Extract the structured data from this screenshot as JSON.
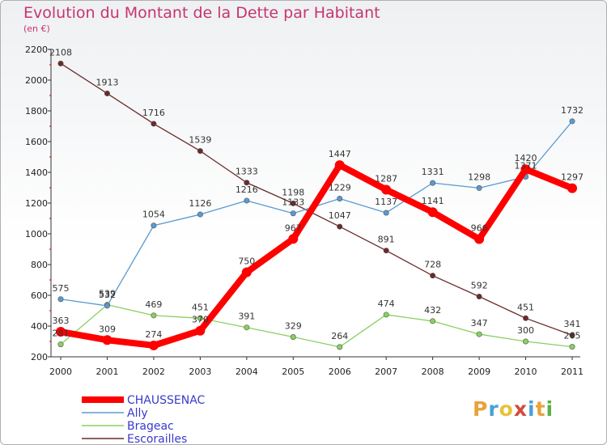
{
  "title": "Evolution du Montant de la Dette par Habitant",
  "subtitle": "(en €)",
  "logo": {
    "text": "Proxiti",
    "colors": [
      "#e8a23a",
      "#4aa0d8",
      "#e8c23a",
      "#d44a3a",
      "#4aa0d8",
      "#e8a23a",
      "#5ab04a"
    ]
  },
  "chart_data": {
    "type": "line",
    "x": [
      "2000",
      "2001",
      "2002",
      "2003",
      "2004",
      "2005",
      "2006",
      "2007",
      "2008",
      "2009",
      "2010",
      "2011"
    ],
    "ylim": [
      200,
      2200
    ],
    "yticks": [
      200,
      400,
      600,
      800,
      1000,
      1200,
      1400,
      1600,
      1800,
      2000,
      2200
    ],
    "grid": false,
    "legend_position": "bottom-left",
    "series": [
      {
        "name": "CHAUSSENAC",
        "color": "#ff0000",
        "values": [
          363,
          309,
          274,
          370,
          750,
          967,
          1447,
          1287,
          1141,
          966,
          1420,
          1297
        ]
      },
      {
        "name": "Ally",
        "color": "#5a9ad0",
        "values": [
          575,
          532,
          1054,
          1126,
          1216,
          1133,
          1229,
          1137,
          1331,
          1298,
          1371,
          1732
        ]
      },
      {
        "name": "Brageac",
        "color": "#88d060",
        "values": [
          281,
          539,
          469,
          451,
          391,
          329,
          264,
          474,
          432,
          347,
          300,
          265
        ]
      },
      {
        "name": "Escorailles",
        "color": "#6b2a2a",
        "values": [
          2108,
          1913,
          1716,
          1539,
          1333,
          1198,
          1047,
          891,
          728,
          592,
          451,
          341
        ]
      }
    ]
  }
}
